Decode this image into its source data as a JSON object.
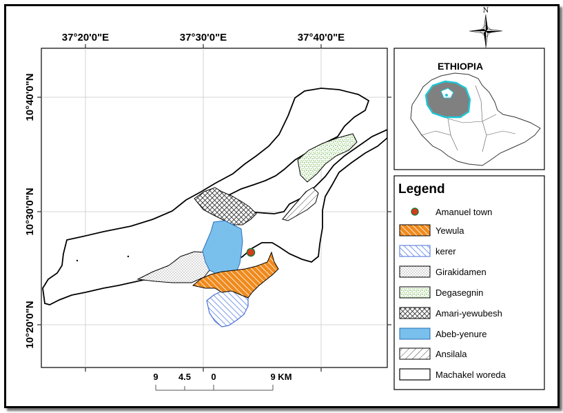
{
  "map": {
    "lon_labels": [
      "37°20'0\"E",
      "37°30'0\"E",
      "37°40'0\"E"
    ],
    "lat_labels": [
      "10°40'0\"N",
      "10°30'0\"N",
      "10°20'0\"N"
    ],
    "north_label": "N",
    "inset_title": "ETHIOPIA",
    "legend_title": "Legend",
    "legend_items": [
      {
        "label": "Amanuel town",
        "symbol": "point",
        "color": "#d93a1a"
      },
      {
        "label": "Yewula",
        "symbol": "hatch-orange",
        "color": "#f08a1c"
      },
      {
        "label": "kerer",
        "symbol": "hatch-blue",
        "color": "#6b8ee8"
      },
      {
        "label": "Girakidamen",
        "symbol": "dots",
        "color": "#555555"
      },
      {
        "label": "Degasegnin",
        "symbol": "green-dots",
        "color": "#7bbf5a"
      },
      {
        "label": "Amari-yewubesh",
        "symbol": "crosshatch",
        "color": "#333333"
      },
      {
        "label": "Abeb-yenure",
        "symbol": "blue-fill",
        "color": "#7ec3ee"
      },
      {
        "label": "Ansilala",
        "symbol": "diagonal",
        "color": "#333333"
      },
      {
        "label": "Machakel woreda",
        "symbol": "outline",
        "color": "#000000"
      }
    ],
    "scale_labels": [
      "9",
      "4.5",
      "0",
      "9 KM"
    ],
    "colors": {
      "region_highlight": "#1ec8d6",
      "region_fill": "#808080"
    }
  }
}
